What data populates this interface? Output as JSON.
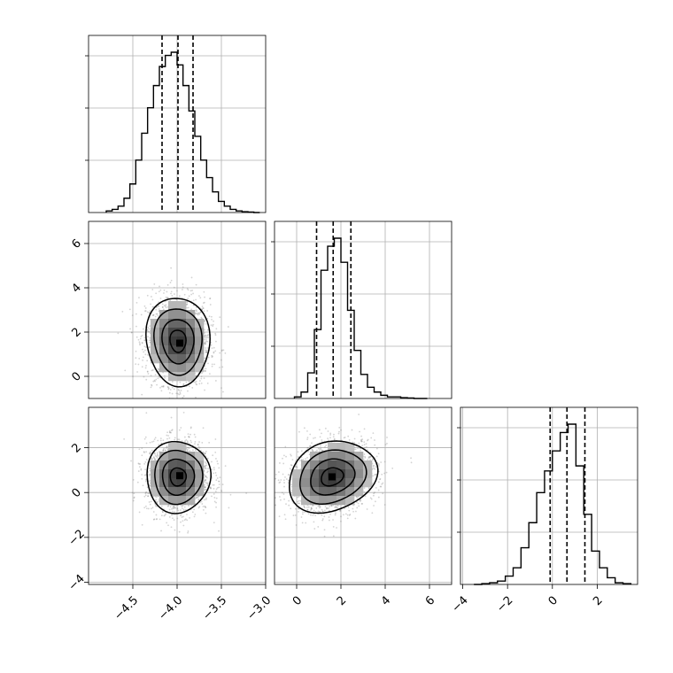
{
  "chart_data": {
    "type": "corner",
    "grid": true,
    "parameters": [
      {
        "range": [
          -5.0,
          -3.0
        ],
        "ticks": [
          "−4.5",
          "−4.0",
          "−3.5",
          "−3.0"
        ],
        "tick_values": [
          -4.5,
          -4.0,
          -3.5,
          -3.0
        ],
        "quantiles": [
          -4.17,
          -3.99,
          -3.82
        ],
        "histogram": {
          "bin_edges": [
            -4.8,
            -4.7333,
            -4.6667,
            -4.6,
            -4.5333,
            -4.4667,
            -4.4,
            -4.3333,
            -4.2667,
            -4.2,
            -4.1333,
            -4.0667,
            -4.0,
            -3.9333,
            -3.8667,
            -3.8,
            -3.7333,
            -3.6667,
            -3.6,
            -3.5333,
            -3.4667,
            -3.4,
            -3.3333,
            -3.2667,
            -3.2,
            -3.1333,
            -3.0667
          ],
          "counts": [
            1,
            2,
            4,
            9,
            18,
            33,
            50,
            66,
            80,
            92,
            99,
            101,
            93,
            80,
            64,
            48,
            33,
            22,
            13,
            7,
            4,
            2,
            1,
            0.5,
            0.3,
            0
          ]
        }
      },
      {
        "range": [
          -1.0,
          7.0
        ],
        "ticks": [
          "0",
          "2",
          "4",
          "6"
        ],
        "tick_values": [
          0,
          2,
          4,
          6
        ],
        "quantiles": [
          0.9,
          1.65,
          2.45
        ],
        "histogram": {
          "bin_edges": [
            -0.1,
            0.2,
            0.5,
            0.8,
            1.1,
            1.4,
            1.7,
            2.0,
            2.3,
            2.6,
            2.9,
            3.2,
            3.5,
            3.8,
            4.1,
            4.4,
            4.7,
            5.0,
            5.3,
            5.6,
            5.9
          ],
          "counts": [
            1,
            4,
            16,
            43,
            80,
            95,
            100,
            85,
            55,
            30,
            15,
            7,
            4,
            2,
            1,
            1,
            0.5,
            0.3,
            0,
            0
          ]
        }
      },
      {
        "range": [
          -4.1,
          3.8
        ],
        "ticks": [
          "−4",
          "−2",
          "0",
          "2"
        ],
        "tick_values": [
          -4,
          -2,
          0,
          2
        ],
        "quantiles": [
          -0.1,
          0.65,
          1.45
        ],
        "histogram": {
          "bin_edges": [
            -3.5,
            -3.15,
            -2.8,
            -2.45,
            -2.1,
            -1.75,
            -1.4,
            -1.05,
            -0.7,
            -0.35,
            0.0,
            0.35,
            0.7,
            1.05,
            1.4,
            1.75,
            2.1,
            2.45,
            2.8,
            3.15,
            3.5
          ],
          "counts": [
            0,
            0.5,
            1,
            2,
            5,
            10,
            22,
            37,
            55,
            68,
            80,
            91,
            96,
            71,
            42,
            20,
            10,
            4,
            1,
            0.5
          ]
        }
      }
    ],
    "pairs": [
      {
        "x": 0,
        "y": 1,
        "mean": [
          -3.99,
          1.6
        ],
        "sd": [
          0.18,
          1.0
        ],
        "rho": -0.05,
        "peak": [
          -3.97,
          1.5
        ]
      },
      {
        "x": 0,
        "y": 2,
        "mean": [
          -3.99,
          0.7
        ],
        "sd": [
          0.18,
          0.8
        ],
        "rho": 0.0,
        "peak": [
          -3.97,
          0.75
        ]
      },
      {
        "x": 1,
        "y": 2,
        "mean": [
          1.6,
          0.7
        ],
        "sd": [
          1.0,
          0.8
        ],
        "rho": 0.2,
        "peak": [
          1.6,
          0.7
        ]
      }
    ],
    "contour_levels": [
      0.118,
      0.393,
      0.675,
      0.864
    ]
  }
}
